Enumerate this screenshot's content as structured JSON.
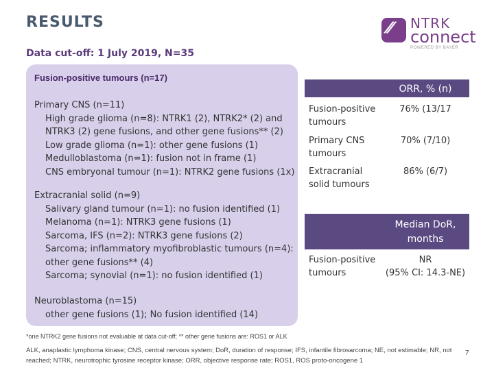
{
  "header": {
    "title": "RESULTS",
    "subtitle": "Data cut-off: 1 July 2019, N=35"
  },
  "logo": {
    "mark": "⁄⁄",
    "name_line1": "NTRK",
    "name_line2": "connect",
    "powered_by": "POWERED BY BAYER",
    "brand_color": "#7a3e8a"
  },
  "left_panel": {
    "heading": "Fusion-positive tumours (n=17)",
    "primary_cns": {
      "title": "Primary CNS (n=11)",
      "lines": [
        "High grade glioma (n=8): NTRK1 (2), NTRK2* (2) and",
        "NTRK3 (2) gene fusions, and other gene fusions** (2)",
        "Low grade glioma (n=1): other gene fusions (1)",
        "Medulloblastoma (n=1): fusion not in frame (1)",
        "CNS embryonal tumour (n=1): NTRK2 gene fusions (1x)"
      ]
    },
    "extracranial": {
      "title": "Extracranial solid (n=9)",
      "lines": [
        "Salivary gland tumour (n=1): no fusion identified (1)",
        "Melanoma (n=1): NTRK3 gene fusions (1)",
        "Sarcoma, IFS (n=2): NTRK3 gene fusions (2)",
        "Sarcoma; inflammatory myofibroblastic tumours (n=4):",
        "other gene fusions** (4)",
        "Sarcoma; synovial (n=1): no fusion identified (1)"
      ]
    },
    "neuroblastoma": {
      "title": "Neuroblastoma (n=15)",
      "lines": [
        "other gene fusions (1); No fusion identified (14)"
      ]
    }
  },
  "orr_table": {
    "header": "ORR, % (n)",
    "rows": [
      {
        "label_line1": "Fusion-positive",
        "label_line2": "tumours",
        "value": "76% (13/17"
      },
      {
        "label_line1": "Primary CNS",
        "label_line2": "tumours",
        "value": "70% (7/10)"
      },
      {
        "label_line1": "Extracranial",
        "label_line2": "solid tumours",
        "value": "86% (6/7)"
      }
    ]
  },
  "dor_table": {
    "header_line1": "Median DoR,",
    "header_line2": "months",
    "rows": [
      {
        "label_line1": "Fusion-positive",
        "label_line2": "tumours",
        "value_line1": "NR",
        "value_line2": "(95% CI: 14.3-NE)"
      }
    ]
  },
  "footnote": "*one NTRK2 gene fusions not evaluable at data cut-off; ** other gene fusions are: ROS1 or ALK",
  "abbreviations": "ALK, anaplastic lymphoma kinase; CNS, central nervous system; DoR, duration of response; IFS, infantile fibrosarcoma; NE, not estimable; NR, not reached; NTRK, neurotrophic tyrosine receptor kinase; ORR, objective response rate; ROS1, ROS proto-oncogene 1",
  "page_number": "7",
  "colors": {
    "panel": "#d8d0eb",
    "header_box": "#5b4a82",
    "accent": "#5a3a7a"
  }
}
